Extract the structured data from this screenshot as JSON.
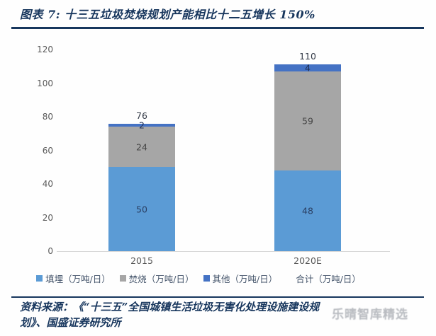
{
  "header": {
    "title": "图表 7:  十三五垃圾焚烧规划产能相比十二五增长 150%"
  },
  "chart_data": {
    "type": "bar",
    "stacked": true,
    "categories": [
      "2015",
      "2020E"
    ],
    "series": [
      {
        "name": "填埋（万吨/日）",
        "color": "#5B9BD5",
        "label_color": "#2a3f63",
        "values": [
          50,
          48
        ]
      },
      {
        "name": "焚烧（万吨/日）",
        "color": "#A6A6A6",
        "label_color": "#474747",
        "values": [
          24,
          59
        ]
      },
      {
        "name": "其他（万吨/日）",
        "color": "#4472C4",
        "label_color": "#1f2f55",
        "values": [
          2,
          4
        ]
      }
    ],
    "totals": {
      "name": "合计（万吨/日）",
      "values": [
        76,
        110
      ]
    },
    "ylim": [
      0,
      120
    ],
    "yticks": [
      0,
      20,
      40,
      60,
      80,
      100,
      120
    ],
    "grid": false,
    "legend_position": "bottom"
  },
  "footer": {
    "source_line1": "资料来源：《“十三五”全国城镇生活垃圾无害化处理设施建设规",
    "source_line2": "划》、国盛证券研究所",
    "watermark": "乐晴智库精选"
  },
  "colors": {
    "accent_navy": "#17365d",
    "tick_text": "#595959",
    "legend_text": "#44546a",
    "axis_line": "#d6d6d6",
    "total_label": "#333a47"
  }
}
